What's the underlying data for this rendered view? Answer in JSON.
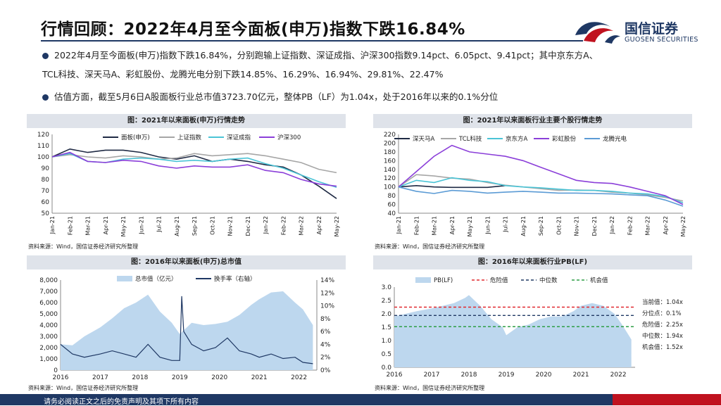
{
  "header": {
    "title": "行情回顾：2022年4月至今面板(申万)指数下跌16.84%",
    "logo_cn": "国信证券",
    "logo_en": "GUOSEN SECURITIES"
  },
  "bullets": {
    "b1_line1": "2022年4月至今面板(申万)指数下跌16.84%，分别跑输上证指数、深证成指、沪深300指数9.14pct、6.05pct、9.41pct；其中京东方A、",
    "b1_line2": "TCL科技、深天马A、彩虹股份、龙腾光电分别下跌14.85%、16.29%、16.94%、29.81%、22.47%",
    "b2": "估值方面，截至5月6日A股面板行业总市值3723.70亿元，整体PB（LF）为1.04x，处于2016年以来的0.1%分位"
  },
  "footer": {
    "disclaimer": "请务必阅读正文之后的免责声明及其项下所有内容"
  },
  "colors": {
    "navy": "#1f3864",
    "red": "#c0121f"
  },
  "chart_data": [
    {
      "type": "line",
      "title": "图：2021年以来面板(申万)行情走势",
      "source": "资料来源：Wind，国信证券经济研究所整理",
      "categories": [
        "Jan-21",
        "Feb-21",
        "Mar-21",
        "Apr-21",
        "May-21",
        "Jun-21",
        "Jul-21",
        "Aug-21",
        "Sep-21",
        "Oct-21",
        "Nov-21",
        "Dec-21",
        "Jan-22",
        "Feb-22",
        "Mar-22",
        "Apr-22",
        "May-22"
      ],
      "ylim": [
        50,
        120
      ],
      "yticks": [
        50,
        60,
        70,
        80,
        90,
        100,
        110,
        120
      ],
      "series": [
        {
          "name": "面板(申万)",
          "color": "#1f2a44",
          "values": [
            100,
            107,
            104,
            106,
            106,
            104,
            100,
            98,
            101,
            96,
            98,
            96,
            93,
            91,
            84,
            74,
            63
          ]
        },
        {
          "name": "上证指数",
          "color": "#a6a6a6",
          "values": [
            100,
            102,
            100,
            99,
            101,
            100,
            98,
            99,
            103,
            101,
            102,
            103,
            101,
            98,
            95,
            89,
            86
          ]
        },
        {
          "name": "深证成指",
          "color": "#4bc4d6",
          "values": [
            100,
            103,
            96,
            95,
            98,
            99,
            98,
            96,
            97,
            96,
            98,
            99,
            94,
            90,
            84,
            78,
            73
          ]
        },
        {
          "name": "沪深300",
          "color": "#8b3fd9",
          "values": [
            100,
            104,
            96,
            95,
            97,
            96,
            92,
            90,
            92,
            91,
            91,
            93,
            88,
            86,
            80,
            76,
            74
          ]
        }
      ]
    },
    {
      "type": "line",
      "title": "图：2021年以来面板行业主要个股行情走势",
      "source": "资料来源：Wind，国信证券经济研究所整理",
      "categories": [
        "Jan-21",
        "Feb-21",
        "Mar-21",
        "Apr-21",
        "May-21",
        "Jun-21",
        "Jul-21",
        "Aug-21",
        "Sep-21",
        "Oct-21",
        "Nov-21",
        "Dec-21",
        "Jan-22",
        "Feb-22",
        "Mar-22",
        "Apr-22",
        "May-22"
      ],
      "ylim": [
        40,
        220
      ],
      "yticks": [
        40,
        60,
        80,
        100,
        120,
        140,
        160,
        180,
        200,
        220
      ],
      "series": [
        {
          "name": "深天马A",
          "color": "#1f2a44",
          "values": [
            100,
            103,
            100,
            99,
            99,
            99,
            103,
            null,
            null,
            null,
            null,
            null,
            null,
            null,
            null,
            null,
            null
          ]
        },
        {
          "name": "TCL科技",
          "color": "#a6a6a6",
          "values": [
            100,
            128,
            125,
            120,
            118,
            110,
            104,
            100,
            96,
            92,
            93,
            92,
            88,
            86,
            82,
            76,
            68
          ]
        },
        {
          "name": "京东方A",
          "color": "#4bc4d6",
          "values": [
            100,
            115,
            110,
            121,
            115,
            112,
            103,
            100,
            98,
            95,
            92,
            92,
            90,
            86,
            84,
            78,
            64
          ]
        },
        {
          "name": "彩虹股份",
          "color": "#8b3fd9",
          "values": [
            100,
            135,
            170,
            195,
            180,
            175,
            170,
            160,
            145,
            130,
            115,
            110,
            108,
            100,
            90,
            80,
            60
          ]
        },
        {
          "name": "龙腾光电",
          "color": "#5b9bd5",
          "values": [
            100,
            90,
            85,
            92,
            90,
            86,
            88,
            90,
            88,
            86,
            86,
            85,
            84,
            82,
            80,
            70,
            56
          ]
        }
      ]
    },
    {
      "type": "area",
      "title": "图：2016年以来面板(申万)总市值",
      "source": "资料来源：Wind，国信证券经济研究所整理",
      "categories": [
        "2016",
        "2017",
        "2018",
        "2019",
        "2020",
        "2021",
        "2022"
      ],
      "ylim": [
        0,
        8000
      ],
      "yticks": [
        0,
        1000,
        2000,
        3000,
        4000,
        5000,
        6000,
        7000,
        8000
      ],
      "y2lim": [
        0,
        14
      ],
      "y2ticks": [
        0,
        2,
        4,
        6,
        8,
        10,
        12,
        14
      ],
      "series": [
        {
          "name": "总市值（亿元）",
          "color": "#bdd7ee",
          "x": [
            2016.0,
            2016.3,
            2016.6,
            2017.0,
            2017.3,
            2017.6,
            2017.9,
            2018.2,
            2018.5,
            2018.8,
            2019.0,
            2019.3,
            2019.6,
            2019.9,
            2020.2,
            2020.5,
            2020.8,
            2021.0,
            2021.3,
            2021.6,
            2021.9,
            2022.1,
            2022.35
          ],
          "values": [
            2300,
            2200,
            3000,
            3800,
            4600,
            5500,
            6000,
            6700,
            5200,
            4200,
            3200,
            4200,
            4000,
            4100,
            4300,
            4900,
            5800,
            6300,
            6900,
            7000,
            6000,
            5400,
            4000
          ]
        },
        {
          "name": "换手率（右轴）",
          "color": "#1f3864",
          "x": [
            2016.0,
            2016.3,
            2016.6,
            2017.0,
            2017.3,
            2017.6,
            2017.9,
            2018.2,
            2018.5,
            2018.8,
            2019.0,
            2019.05,
            2019.1,
            2019.3,
            2019.6,
            2019.9,
            2020.2,
            2020.5,
            2020.8,
            2021.0,
            2021.3,
            2021.6,
            2021.9,
            2022.1,
            2022.35
          ],
          "values": [
            4,
            2.5,
            2,
            2.5,
            3,
            2.5,
            2,
            4,
            2,
            1.5,
            1.5,
            11.5,
            6,
            4,
            3,
            3.5,
            5,
            3,
            2.5,
            2,
            2.5,
            1.8,
            2,
            1.2,
            1
          ]
        }
      ]
    },
    {
      "type": "area",
      "title": "图：2016年以来面板行业PB(LF)",
      "source": "资料来源：Wind，国信证券经济研究所整理",
      "categories": [
        "2016",
        "2017",
        "2018",
        "2019",
        "2020",
        "2021",
        "2022"
      ],
      "ylim": [
        0,
        3.0
      ],
      "yticks": [
        0.0,
        0.5,
        1.0,
        1.5,
        2.0,
        2.5,
        3.0
      ],
      "series": [
        {
          "name": "PB(LF)",
          "color": "#bdd7ee",
          "x": [
            2016.0,
            2016.3,
            2016.6,
            2017.0,
            2017.3,
            2017.6,
            2017.9,
            2018.0,
            2018.3,
            2018.6,
            2018.9,
            2019.0,
            2019.3,
            2019.6,
            2019.9,
            2020.2,
            2020.5,
            2020.8,
            2021.0,
            2021.3,
            2021.6,
            2021.9,
            2022.1,
            2022.35
          ],
          "values": [
            1.9,
            2.0,
            2.1,
            2.2,
            2.3,
            2.4,
            2.6,
            2.7,
            2.3,
            1.8,
            1.5,
            1.2,
            1.5,
            1.6,
            1.8,
            1.9,
            1.9,
            2.1,
            2.3,
            2.4,
            2.3,
            2.0,
            1.6,
            1.04
          ]
        },
        {
          "name": "危险值",
          "color": "#e0282e",
          "value": 2.25
        },
        {
          "name": "中位数",
          "color": "#1f3864",
          "value": 1.94
        },
        {
          "name": "机会值",
          "color": "#2e9e46",
          "value": 1.52
        }
      ],
      "annotations": [
        {
          "label": "当前值：1.04x"
        },
        {
          "label": "分位点：0.1%"
        },
        {
          "label": "危险值：2.25x"
        },
        {
          "label": "中位数：1.94x"
        },
        {
          "label": "机会值：1.52x"
        }
      ]
    }
  ]
}
